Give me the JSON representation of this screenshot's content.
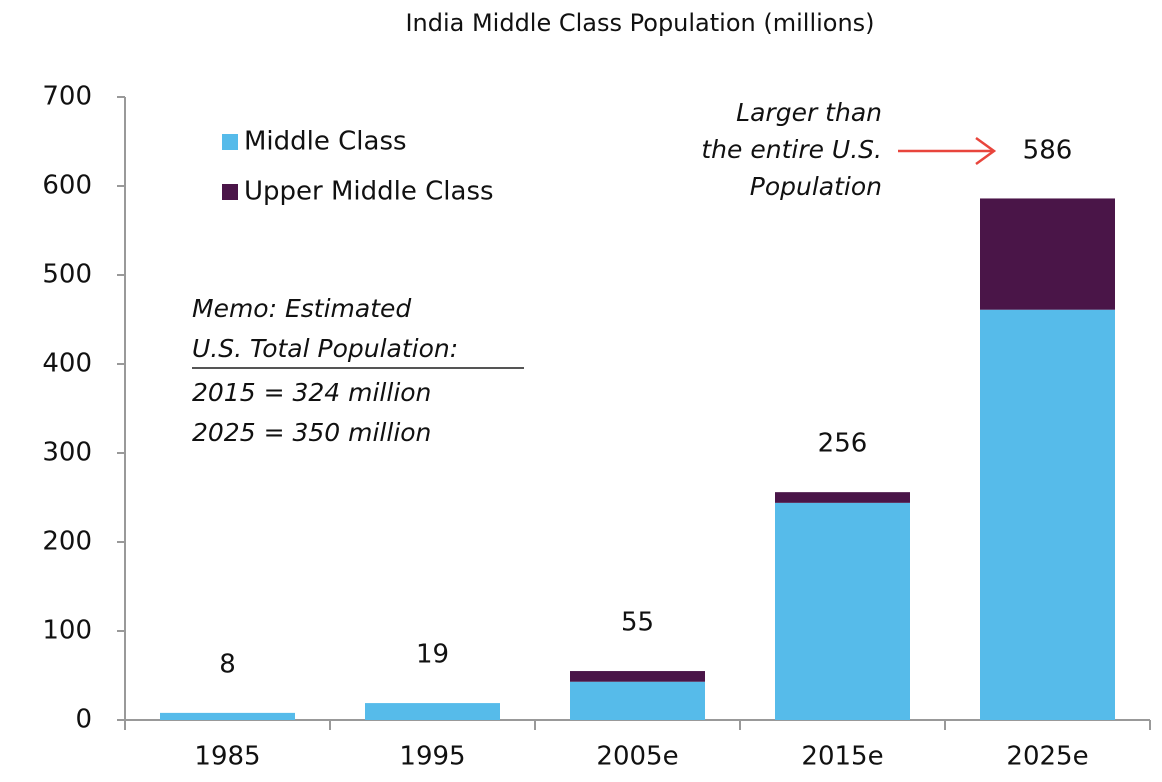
{
  "chart_data": {
    "type": "stacked_bar",
    "title": "India Middle Class Population (millions)",
    "categories": [
      "1985",
      "1995",
      "2005e",
      "2015e",
      "2025e"
    ],
    "series": [
      {
        "name": "Middle Class",
        "color": "#56bbea",
        "values": [
          8,
          19,
          43,
          244,
          461
        ]
      },
      {
        "name": "Upper Middle Class",
        "color": "#4a1548",
        "values": [
          0,
          0,
          12,
          12,
          125
        ]
      }
    ],
    "totals": [
      8,
      19,
      55,
      256,
      586
    ],
    "ylim": [
      0,
      700
    ],
    "yticks": [
      0,
      100,
      200,
      300,
      400,
      500,
      600,
      700
    ],
    "legend": "upper-left",
    "annotations": {
      "memo": [
        "Memo: Estimated",
        "U.S. Total Population:",
        "2015 = 324 million",
        "2025 = 350 million"
      ],
      "callout": [
        "Larger than",
        "the entire U.S.",
        "Population"
      ]
    }
  }
}
